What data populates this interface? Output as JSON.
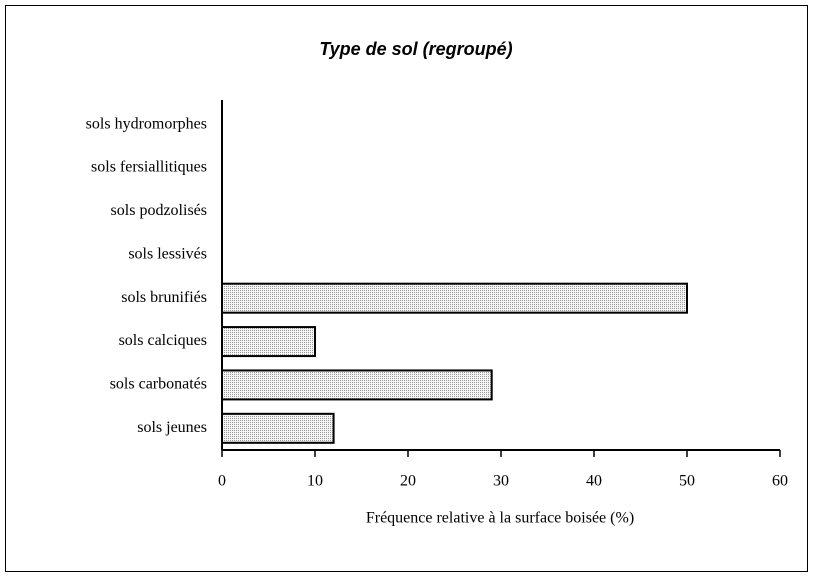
{
  "chart_data": {
    "type": "bar",
    "orientation": "horizontal",
    "title": "Type de sol (regroupé)",
    "x_label": "Fréquence relative à la surface boisée (%)",
    "categories": [
      "sols hydromorphes",
      "sols fersiallitiques",
      "sols podzolisés",
      "sols lessivés",
      "sols brunifiés",
      "sols calciques",
      "sols carbonatés",
      "sols jeunes"
    ],
    "values": [
      0,
      0,
      0,
      0,
      50,
      10,
      29,
      12
    ],
    "color": "#dcdcdc",
    "xlim": [
      0,
      60
    ],
    "xticks": [
      0,
      10,
      20,
      30,
      40,
      50,
      60
    ],
    "grid": false
  }
}
